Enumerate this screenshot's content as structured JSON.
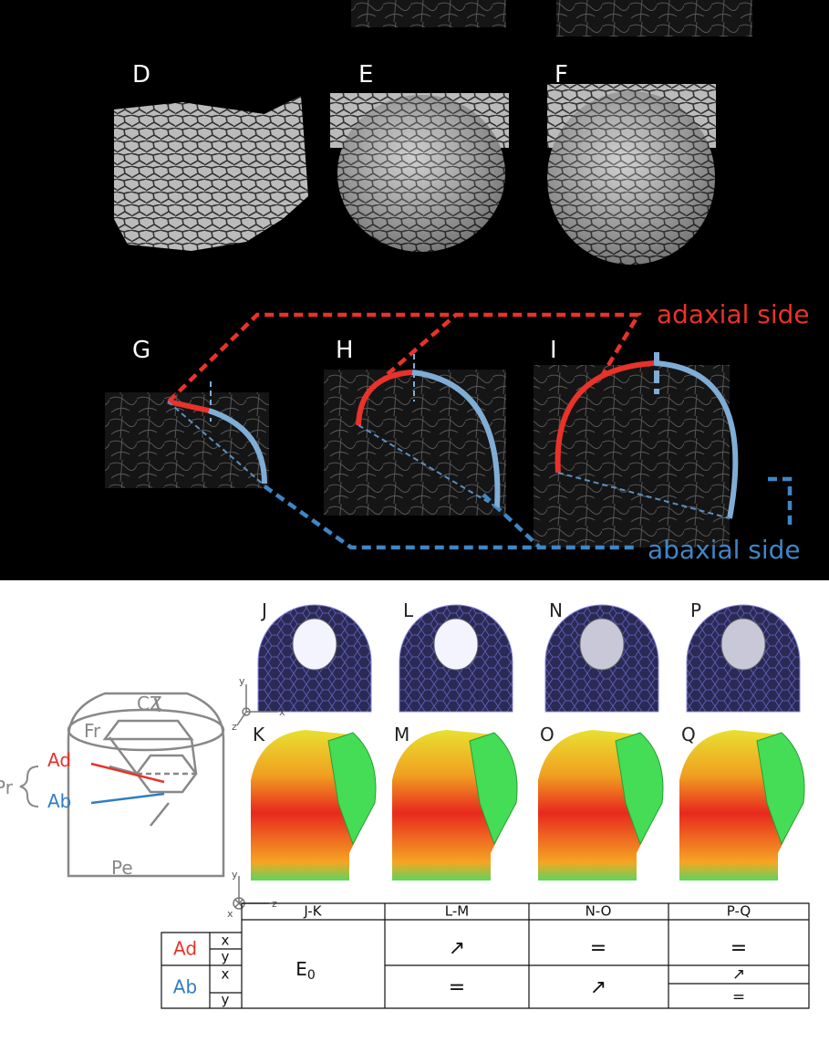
{
  "photos": {
    "labels": [
      "D",
      "E",
      "F"
    ]
  },
  "sections": {
    "labels": [
      "G",
      "H",
      "I"
    ],
    "adaxial": "adaxial side",
    "abaxial": "abaxial side"
  },
  "models": {
    "top_labels": [
      "J",
      "L",
      "N",
      "P"
    ],
    "bottom_labels": [
      "K",
      "M",
      "O",
      "Q"
    ]
  },
  "schematic": {
    "cz": "CZ",
    "fr": "Fr",
    "ad": "Ad",
    "ab": "Ab",
    "pr": "Pr",
    "pe": "Pe"
  },
  "axes": {
    "top": {
      "y": "y",
      "z": "z",
      "x": "x"
    },
    "bottom": {
      "y": "y",
      "x": "x",
      "z": "z"
    }
  },
  "table": {
    "header": [
      "J-K",
      "L-M",
      "N-O",
      "P-Q"
    ],
    "groups": [
      "Ad",
      "Ab"
    ],
    "dims": [
      "x",
      "y",
      "x",
      "y"
    ],
    "e0": {
      "base": "E",
      "sub": "0"
    },
    "ad": [
      "↗",
      "=",
      "="
    ],
    "ab": [
      "=",
      "↗",
      "↗",
      "="
    ]
  }
}
